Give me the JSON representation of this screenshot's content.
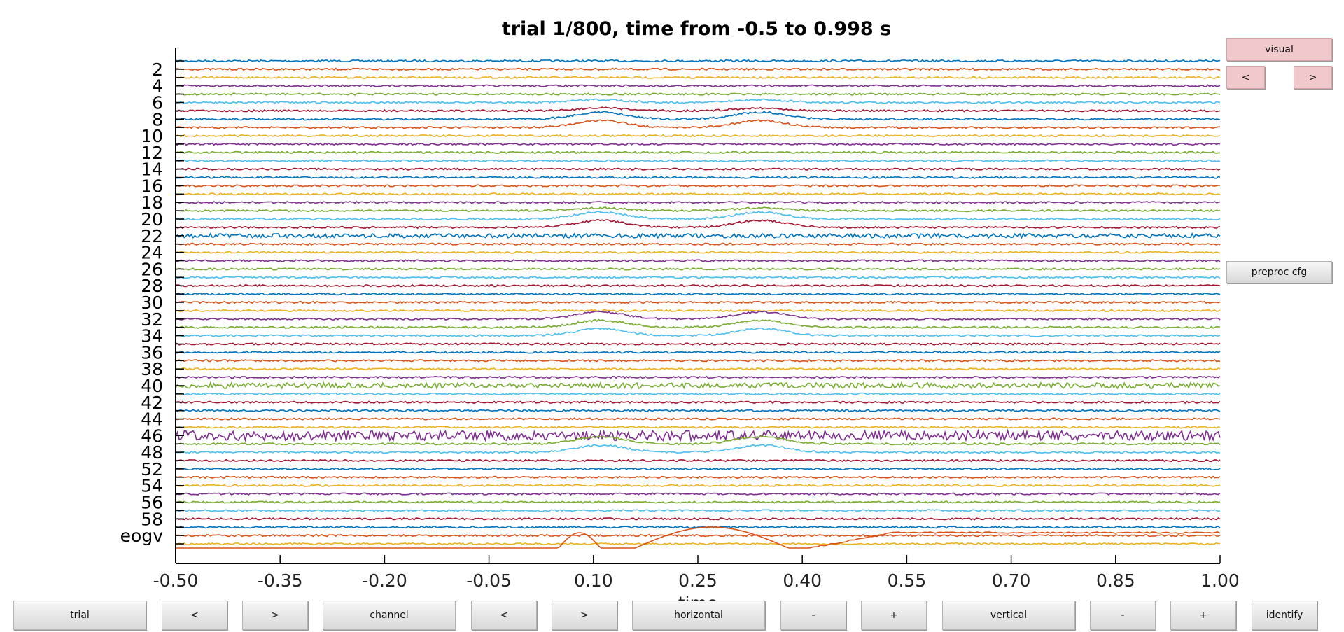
{
  "title": "trial 1/800, time from -0.5 to 0.998 s",
  "xaxis": {
    "label": "time",
    "ticks": [
      "-0.50",
      "-0.35",
      "-0.20",
      "-0.05",
      "0.10",
      "0.25",
      "0.40",
      "0.55",
      "0.70",
      "0.85",
      "1.00"
    ],
    "range": [
      -0.5,
      1.0
    ]
  },
  "channel_labels": [
    "2",
    "4",
    "6",
    "8",
    "10",
    "12",
    "14",
    "16",
    "18",
    "20",
    "22",
    "24",
    "26",
    "28",
    "30",
    "32",
    "34",
    "36",
    "38",
    "40",
    "42",
    "44",
    "46",
    "48",
    "52",
    "54",
    "56",
    "58",
    "eogv"
  ],
  "trace_colors": [
    "#0072bd",
    "#d95319",
    "#edb120",
    "#7e2f8e",
    "#77ac30",
    "#4dbeee",
    "#a2142f"
  ],
  "side_buttons": {
    "visual": "visual",
    "prev": "<",
    "next": ">",
    "preproc": "preproc cfg"
  },
  "bottom_buttons": {
    "trial": "trial",
    "trial_prev": "<",
    "trial_next": ">",
    "channel": "channel",
    "channel_prev": "<",
    "channel_next": ">",
    "horizontal": "horizontal",
    "horizontal_minus": "-",
    "horizontal_plus": "+",
    "vertical": "vertical",
    "vertical_minus": "-",
    "vertical_plus": "+",
    "identify": "identify"
  }
}
